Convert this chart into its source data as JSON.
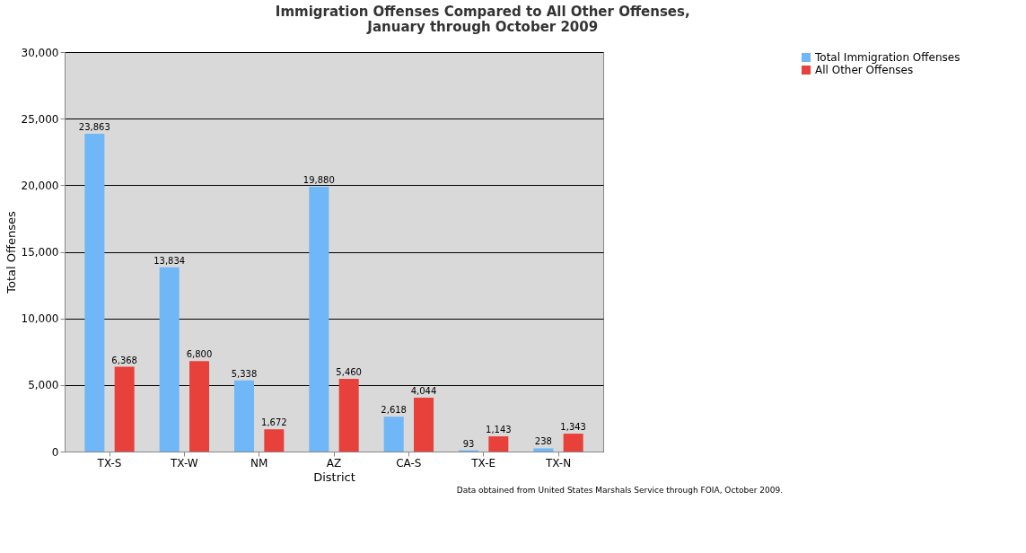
{
  "chart_data": {
    "type": "bar",
    "title": "Immigration Offenses Compared to All Other Offenses,\nJanuary through October 2009",
    "xlabel": "District",
    "ylabel": "Total Offenses",
    "categories": [
      "TX-S",
      "TX-W",
      "NM",
      "AZ",
      "CA-S",
      "TX-E",
      "TX-N"
    ],
    "series": [
      {
        "name": "Total Immigration Offenses",
        "color": "#6fb7f7",
        "values": [
          23863,
          13834,
          5338,
          19880,
          2618,
          93,
          238
        ],
        "value_labels": [
          "23,863",
          "13,834",
          "5,338",
          "19,880",
          "2,618",
          "93",
          "238"
        ]
      },
      {
        "name": "All Other Offenses",
        "color": "#e8403a",
        "values": [
          6368,
          6800,
          1672,
          5460,
          4044,
          1143,
          1343
        ],
        "value_labels": [
          "6,368",
          "6,800",
          "1,672",
          "5,460",
          "4,044",
          "1,143",
          "1,343"
        ]
      }
    ],
    "ylim": [
      0,
      30000
    ],
    "yticks": [
      0,
      {
        "value": 5000,
        "label": "5,000"
      },
      {
        "value": 10000,
        "label": "10,000"
      },
      {
        "value": 15000,
        "label": "15,000"
      },
      {
        "value": 20000,
        "label": "20,000"
      },
      {
        "value": 25000,
        "label": "25,000"
      },
      {
        "value": 30000,
        "label": "30,000"
      }
    ],
    "grid": "y",
    "legend": "right",
    "annotations": [
      "Data obtained from United States Marshals Service through FOIA, October 2009."
    ]
  }
}
